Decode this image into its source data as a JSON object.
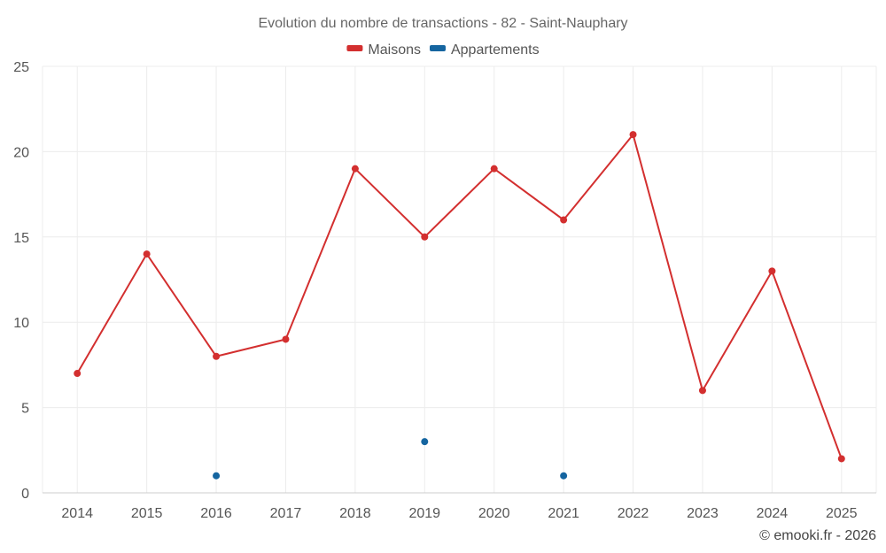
{
  "chart_data": {
    "type": "line",
    "title": "Evolution du nombre de transactions - 82 - Saint-Nauphary",
    "categories": [
      "2014",
      "2015",
      "2016",
      "2017",
      "2018",
      "2019",
      "2020",
      "2021",
      "2022",
      "2023",
      "2024",
      "2025"
    ],
    "series": [
      {
        "name": "Maisons",
        "color": "#d32f2f",
        "values": [
          7,
          14,
          8,
          9,
          19,
          15,
          19,
          16,
          21,
          6,
          13,
          2
        ]
      },
      {
        "name": "Appartements",
        "color": "#1565a0",
        "values": [
          null,
          null,
          1,
          null,
          null,
          3,
          null,
          1,
          null,
          null,
          null,
          null
        ]
      }
    ],
    "ylim": [
      0,
      25
    ],
    "yticks": [
      0,
      5,
      10,
      15,
      20,
      25
    ],
    "xlabel": "",
    "ylabel": "",
    "grid": true,
    "legend_position": "top-center"
  },
  "credit": "© emooki.fr - 2026"
}
